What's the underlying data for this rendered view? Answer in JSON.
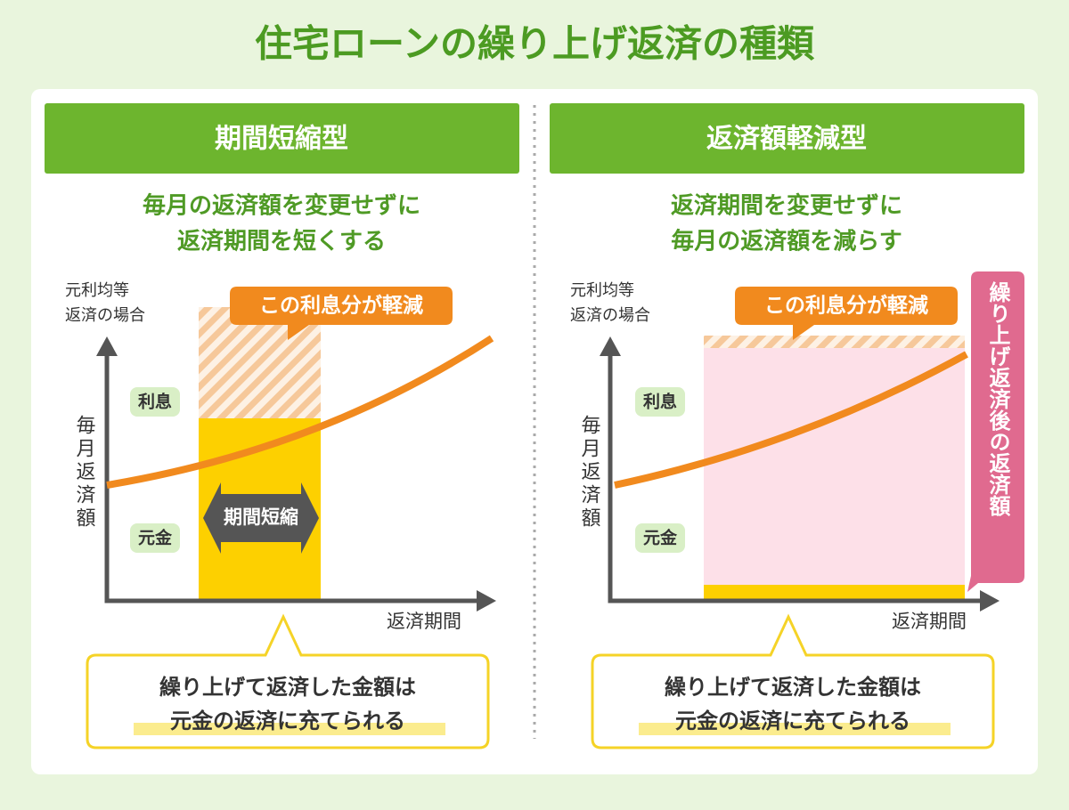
{
  "title": "住宅ローンの繰り上げ返済の種類",
  "panels": [
    {
      "header": "期間短縮型",
      "description": [
        "毎月の返済額を変更せずに",
        "返済期間を短くする"
      ],
      "y_label_top": [
        "元利均等",
        "返済の場合"
      ],
      "y_axis": "毎月返済額",
      "x_axis": "返済期間",
      "interest_label": "利息",
      "principal_label": "元金",
      "callout": "この利息分が軽減",
      "arrow_label": "期間短縮",
      "note": [
        "繰り上げて返済した金額は",
        "元金の返済に充てられる"
      ]
    },
    {
      "header": "返済額軽減型",
      "description": [
        "返済期間を変更せずに",
        "毎月の返済額を減らす"
      ],
      "y_label_top": [
        "元利均等",
        "返済の場合"
      ],
      "y_axis": "毎月返済額",
      "x_axis": "返済期間",
      "interest_label": "利息",
      "principal_label": "元金",
      "callout": "この利息分が軽減",
      "side_label": "繰り上げ返済後の返済額",
      "note": [
        "繰り上げて返済した金額は",
        "元金の返済に充てられる"
      ]
    }
  ]
}
